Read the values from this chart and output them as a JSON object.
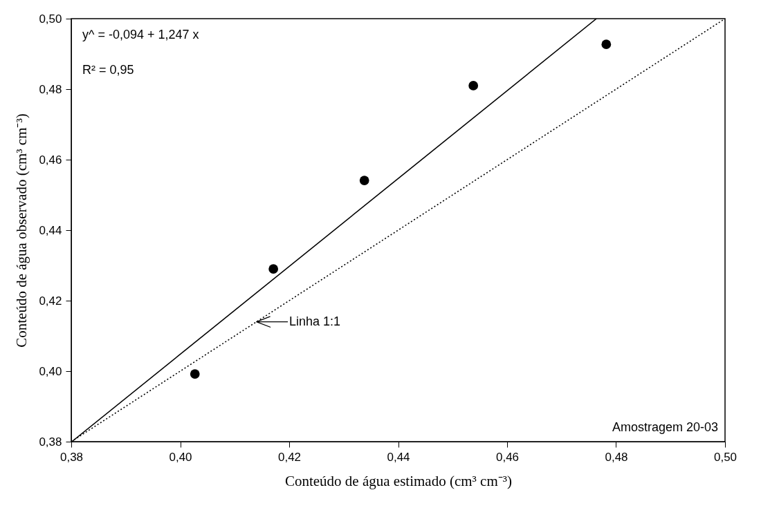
{
  "chart_data": {
    "type": "scatter",
    "xlabel": "Conteúdo de água  estimado (cm³ cm⁻³)",
    "ylabel": "Conteúdo de água observado (cm³ cm⁻³)",
    "xlim": [
      0.38,
      0.5
    ],
    "ylim": [
      0.38,
      0.5
    ],
    "xticks": [
      {
        "value": 0.38,
        "label": "0,38"
      },
      {
        "value": 0.4,
        "label": "0,40"
      },
      {
        "value": 0.42,
        "label": "0,42"
      },
      {
        "value": 0.44,
        "label": "0,44"
      },
      {
        "value": 0.46,
        "label": "0,46"
      },
      {
        "value": 0.48,
        "label": "0,48"
      },
      {
        "value": 0.5,
        "label": "0,50"
      }
    ],
    "yticks": [
      {
        "value": 0.38,
        "label": "0,38"
      },
      {
        "value": 0.4,
        "label": "0,40"
      },
      {
        "value": 0.42,
        "label": "0,42"
      },
      {
        "value": 0.44,
        "label": "0,44"
      },
      {
        "value": 0.46,
        "label": "0,46"
      },
      {
        "value": 0.48,
        "label": "0,48"
      },
      {
        "value": 0.5,
        "label": "0,50"
      }
    ],
    "series": [
      {
        "color": "#000000",
        "marker": "circle",
        "x": [
          0.4027,
          0.4171,
          0.4338,
          0.4538,
          0.4782
        ],
        "values": [
          0.3992,
          0.429,
          0.4541,
          0.481,
          0.4927
        ]
      },
      {
        "type": "line",
        "color": "#000000",
        "line_style": "solid",
        "x": [
          0.3801,
          0.4764
        ],
        "values": [
          0.38,
          0.5
        ]
      },
      {
        "type": "line",
        "color": "#000000",
        "line_style": "dotted",
        "x": [
          0.38,
          0.5
        ],
        "values": [
          0.38,
          0.5
        ]
      }
    ],
    "annotations": [
      "y^ = -0,094 + 1,247 x",
      "R² = 0,95",
      {
        "text": "Linha 1:1",
        "x": 0.414,
        "y": 0.414
      },
      "Amostragem 20-03"
    ]
  }
}
